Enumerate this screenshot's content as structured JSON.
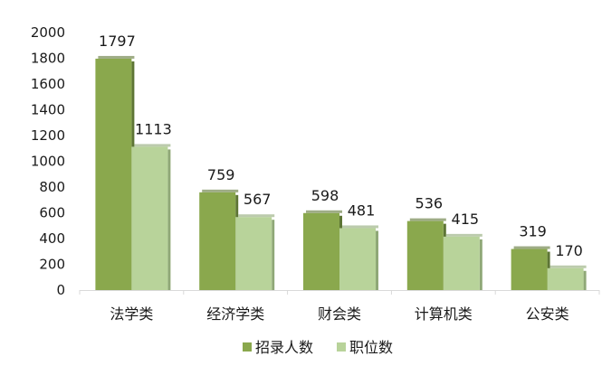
{
  "chart_data": {
    "type": "bar",
    "categories": [
      "法学类",
      "经济学类",
      "财会类",
      "计算机类",
      "公安类"
    ],
    "series": [
      {
        "name": "招录人数",
        "values": [
          1797,
          759,
          598,
          536,
          319
        ],
        "color": "#8aa84d",
        "shadow": "#5d7535"
      },
      {
        "name": "职位数",
        "values": [
          1113,
          567,
          481,
          415,
          170
        ],
        "color": "#b8d39a",
        "shadow": "#8fa877"
      }
    ],
    "ylim": [
      0,
      2000
    ],
    "yticks": [
      0,
      200,
      400,
      600,
      800,
      1000,
      1200,
      1400,
      1600,
      1800,
      2000
    ],
    "grid": false,
    "legend_position": "bottom",
    "axis_color": "#d9d9d9"
  }
}
